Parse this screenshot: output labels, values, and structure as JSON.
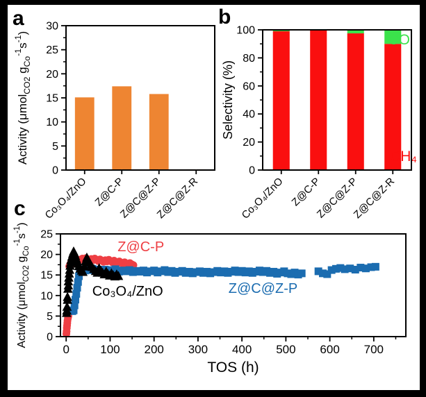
{
  "figure": {
    "background": "#000000",
    "panel_labels": [
      "a",
      "b",
      "c"
    ]
  },
  "chart_data": [
    {
      "panel": "a",
      "type": "bar",
      "title": "",
      "categories": [
        "Co₃O₄/ZnO",
        "Z@C-P",
        "Z@C@Z-P",
        "Z@C@Z-R"
      ],
      "values": [
        15.1,
        17.4,
        15.8,
        0.15
      ],
      "bar_color": "#EE8532",
      "ylabel_segments": [
        {
          "text": "Activity (μmol"
        },
        {
          "text": "CO2",
          "script": "sub"
        },
        {
          "text": " g"
        },
        {
          "text": "Co",
          "script": "sub"
        },
        {
          "text": "-1",
          "script": "sup"
        },
        {
          "text": "s"
        },
        {
          "text": "-1",
          "script": "sup"
        },
        {
          "text": ")"
        }
      ],
      "ylim": [
        0,
        30
      ],
      "yticks": [
        0,
        5,
        10,
        15,
        20,
        25,
        30
      ],
      "y_minor_step": 2.5,
      "grid": false
    },
    {
      "panel": "b",
      "type": "stacked-bar",
      "title": "",
      "categories": [
        "Co₃O₄/ZnO",
        "Z@C-P",
        "Z@C@Z-P",
        "Z@C@Z-R"
      ],
      "series": [
        {
          "name": "CH₄",
          "color": "#FA0F0F",
          "values": [
            99,
            99.5,
            97.5,
            90
          ]
        },
        {
          "name": "CO",
          "color": "#3BE24B",
          "values": [
            1,
            0.5,
            2.5,
            10
          ]
        }
      ],
      "ylabel_segments": [
        {
          "text": "Selectivity (%)"
        }
      ],
      "ylim": [
        0,
        100
      ],
      "yticks": [
        0,
        20,
        40,
        60,
        80,
        100
      ],
      "y_minor_step": 10,
      "annotations": [
        {
          "text": "CO",
          "color": "#3BE24B",
          "y": 93,
          "dx": -2,
          "size": 21
        },
        {
          "text": "CH₄",
          "color": "#FA0F0F",
          "y": 10,
          "dx": 8,
          "size": 21
        }
      ],
      "grid": false
    },
    {
      "panel": "c",
      "type": "scatter",
      "title": "",
      "xlabel": "TOS (h)",
      "xlim": [
        -13,
        773
      ],
      "xticks": [
        0,
        100,
        200,
        300,
        400,
        500,
        600,
        700
      ],
      "x_minor_step": 50,
      "ylim": [
        0,
        25
      ],
      "yticks": [
        0,
        5,
        10,
        15,
        20,
        25
      ],
      "y_minor_step": 2.5,
      "ylabel_segments": [
        {
          "text": "Activity (μmol"
        },
        {
          "text": "CO2",
          "script": "sub"
        },
        {
          "text": " g"
        },
        {
          "text": "Co",
          "script": "sub"
        },
        {
          "text": "-1",
          "script": "sup"
        },
        {
          "text": "s"
        },
        {
          "text": "-1",
          "script": "sup"
        },
        {
          "text": ")"
        }
      ],
      "series": [
        {
          "name": "Z@C-P",
          "marker": "circle",
          "color": "#EE3F44",
          "points": [
            [
              0.5,
              0.7
            ],
            [
              1,
              1.3
            ],
            [
              1.5,
              2.1
            ],
            [
              2,
              2.7
            ],
            [
              2.5,
              3.3
            ],
            [
              3,
              3.9
            ],
            [
              4,
              4.5
            ],
            [
              5,
              5.0
            ],
            [
              7,
              17.1
            ],
            [
              9,
              17.6
            ],
            [
              11,
              18.0
            ],
            [
              13,
              17.7
            ],
            [
              15,
              18.2
            ],
            [
              18,
              17.9
            ],
            [
              21,
              18.3
            ],
            [
              25,
              18.1
            ],
            [
              29,
              18.5
            ],
            [
              33,
              18.8
            ],
            [
              37,
              19.0
            ],
            [
              41,
              18.7
            ],
            [
              45,
              19.1
            ],
            [
              49,
              18.8
            ],
            [
              53,
              18.5
            ],
            [
              57,
              18.9
            ],
            [
              61,
              18.6
            ],
            [
              65,
              19.0
            ],
            [
              69,
              18.7
            ],
            [
              73,
              18.4
            ],
            [
              77,
              18.8
            ],
            [
              81,
              18.5
            ],
            [
              85,
              18.2
            ],
            [
              89,
              18.6
            ],
            [
              93,
              18.3
            ],
            [
              97,
              18.7
            ],
            [
              101,
              18.4
            ],
            [
              105,
              18.1
            ],
            [
              109,
              18.5
            ],
            [
              113,
              18.2
            ],
            [
              117,
              17.9
            ],
            [
              121,
              18.3
            ],
            [
              125,
              18.0
            ],
            [
              129,
              17.7
            ],
            [
              133,
              18.1
            ],
            [
              137,
              17.8
            ],
            [
              141,
              17.5
            ],
            [
              145,
              17.9
            ],
            [
              149,
              17.6
            ],
            [
              153,
              17.4
            ]
          ]
        },
        {
          "name": "Z@C@Z-P",
          "marker": "square",
          "color": "#1B6CB0",
          "points": [
            [
              14,
              6.2
            ],
            [
              17,
              6.4
            ],
            [
              19,
              7.6
            ],
            [
              21,
              9.0
            ],
            [
              23,
              10.4
            ],
            [
              25,
              11.9
            ],
            [
              27,
              13.3
            ],
            [
              29,
              14.7
            ],
            [
              31,
              15.7
            ],
            [
              34,
              16.2
            ],
            [
              38,
              16.4
            ],
            [
              43,
              16.1
            ],
            [
              48,
              16.4
            ],
            [
              54,
              16.2
            ],
            [
              60,
              16.5
            ],
            [
              66,
              16.1
            ],
            [
              73,
              16.3
            ],
            [
              80,
              16.0
            ],
            [
              88,
              16.3
            ],
            [
              96,
              15.9
            ],
            [
              104,
              16.2
            ],
            [
              112,
              16.4
            ],
            [
              120,
              15.8
            ],
            [
              128,
              16.1
            ],
            [
              136,
              15.9
            ],
            [
              144,
              16.2
            ],
            [
              152,
              15.7
            ],
            [
              160,
              16.0
            ],
            [
              168,
              15.8
            ],
            [
              176,
              16.1
            ],
            [
              184,
              15.6
            ],
            [
              192,
              15.9
            ],
            [
              200,
              16.1
            ],
            [
              208,
              15.6
            ],
            [
              216,
              15.9
            ],
            [
              224,
              16.2
            ],
            [
              232,
              15.7
            ],
            [
              240,
              16.0
            ],
            [
              248,
              15.5
            ],
            [
              256,
              15.8
            ],
            [
              264,
              16.0
            ],
            [
              272,
              15.5
            ],
            [
              280,
              15.8
            ],
            [
              288,
              15.4
            ],
            [
              296,
              15.7
            ],
            [
              304,
              15.9
            ],
            [
              312,
              15.5
            ],
            [
              320,
              15.8
            ],
            [
              328,
              15.4
            ],
            [
              336,
              15.7
            ],
            [
              344,
              16.0
            ],
            [
              352,
              15.6
            ],
            [
              360,
              15.9
            ],
            [
              368,
              15.5
            ],
            [
              376,
              15.8
            ],
            [
              384,
              16.1
            ],
            [
              392,
              15.7
            ],
            [
              400,
              16.0
            ],
            [
              408,
              15.6
            ],
            [
              416,
              15.9
            ],
            [
              424,
              15.5
            ],
            [
              432,
              15.8
            ],
            [
              440,
              16.1
            ],
            [
              448,
              15.7
            ],
            [
              456,
              16.0
            ],
            [
              464,
              15.5
            ],
            [
              472,
              15.8
            ],
            [
              480,
              15.3
            ],
            [
              488,
              15.6
            ],
            [
              496,
              15.9
            ],
            [
              504,
              15.4
            ],
            [
              512,
              15.2
            ],
            [
              520,
              15.6
            ],
            [
              528,
              15.1
            ],
            [
              536,
              15.4
            ],
            [
              574,
              15.9
            ],
            [
              584,
              15.4
            ],
            [
              594,
              15.2
            ],
            [
              604,
              16.2
            ],
            [
              614,
              16.5
            ],
            [
              624,
              16.7
            ],
            [
              634,
              16.4
            ],
            [
              646,
              16.6
            ],
            [
              658,
              16.3
            ],
            [
              670,
              16.8
            ],
            [
              682,
              16.6
            ],
            [
              694,
              16.9
            ],
            [
              704,
              17.0
            ]
          ]
        },
        {
          "name": "Co₃O₄/ZnO",
          "marker": "triangle",
          "color": "#000000",
          "points": [
            [
              1,
              5.7
            ],
            [
              1.5,
              6.3
            ],
            [
              2,
              7.2
            ],
            [
              3,
              8.9
            ],
            [
              3,
              9.6
            ],
            [
              4,
              11.6
            ],
            [
              5,
              12.4
            ],
            [
              5,
              13.4
            ],
            [
              6,
              14.3
            ],
            [
              7,
              15.3
            ],
            [
              8,
              16.2
            ],
            [
              9,
              17.2
            ],
            [
              10,
              17.9
            ],
            [
              11,
              18.6
            ],
            [
              13,
              19.4
            ],
            [
              15,
              20.1
            ],
            [
              17,
              20.7
            ],
            [
              19,
              20.2
            ],
            [
              21,
              19.6
            ],
            [
              23,
              18.9
            ],
            [
              25,
              18.3
            ],
            [
              27,
              17.7
            ],
            [
              29,
              17.1
            ],
            [
              32,
              16.5
            ],
            [
              35,
              16.0
            ],
            [
              38,
              15.7
            ],
            [
              41,
              17.0
            ],
            [
              44,
              18.3
            ],
            [
              47,
              19.2
            ],
            [
              50,
              18.6
            ],
            [
              53,
              18.0
            ],
            [
              56,
              17.4
            ],
            [
              59,
              16.9
            ],
            [
              63,
              16.4
            ],
            [
              67,
              15.9
            ],
            [
              71,
              15.5
            ],
            [
              75,
              16.6
            ],
            [
              79,
              16.0
            ],
            [
              83,
              15.5
            ],
            [
              87,
              15.1
            ],
            [
              91,
              15.8
            ],
            [
              95,
              15.2
            ],
            [
              99,
              14.8
            ],
            [
              103,
              15.4
            ],
            [
              107,
              14.9
            ],
            [
              111,
              14.6
            ],
            [
              115,
              15.1
            ],
            [
              119,
              14.7
            ]
          ]
        }
      ],
      "labels": [
        {
          "text": "Z@C-P",
          "color": "#EE3F44",
          "x": 170,
          "y": 20.8,
          "size": 20
        },
        {
          "text": "Co₃O₄/ZnO",
          "color": "#000000",
          "x": 140,
          "y": 10.0,
          "size": 20
        },
        {
          "text": "Z@C@Z-P",
          "color": "#1B6CB0",
          "x": 448,
          "y": 10.6,
          "size": 20
        }
      ],
      "grid": false
    }
  ]
}
